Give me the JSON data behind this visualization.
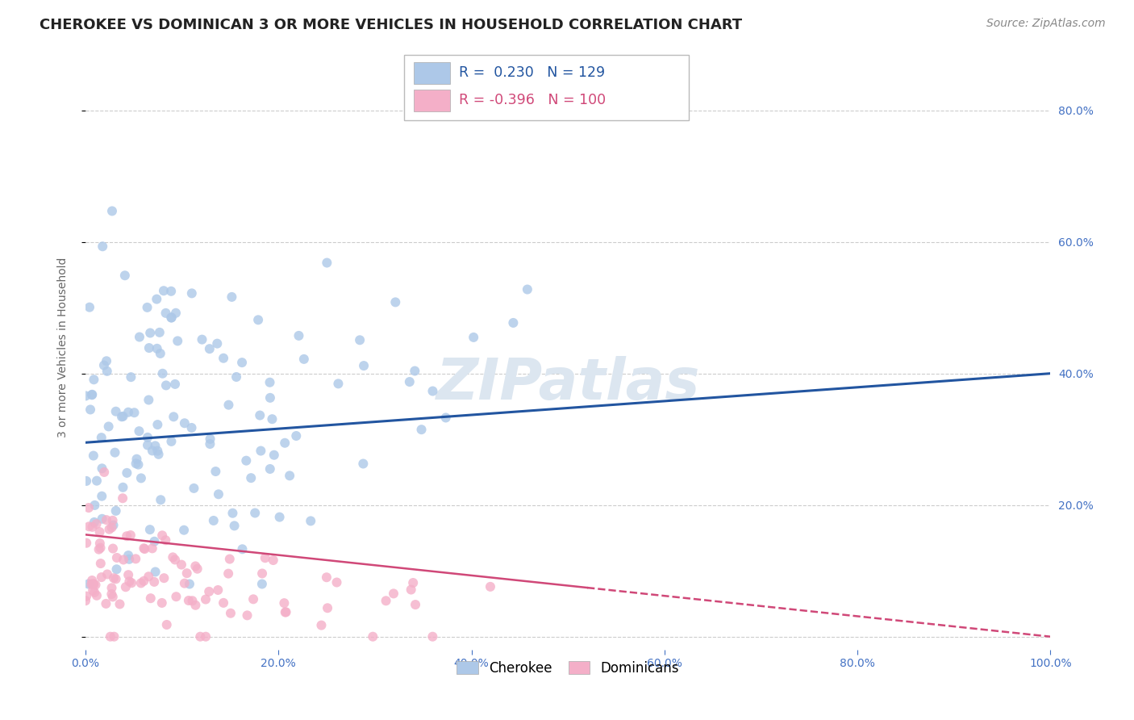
{
  "title": "CHEROKEE VS DOMINICAN 3 OR MORE VEHICLES IN HOUSEHOLD CORRELATION CHART",
  "source": "Source: ZipAtlas.com",
  "ylabel": "3 or more Vehicles in Household",
  "xlim": [
    0.0,
    1.0
  ],
  "ylim": [
    -0.02,
    0.9
  ],
  "cherokee_R": 0.23,
  "cherokee_N": 129,
  "dominican_R": -0.396,
  "dominican_N": 100,
  "cherokee_color": "#adc8e8",
  "cherokee_line_color": "#2255a0",
  "dominican_color": "#f4afc8",
  "dominican_line_color": "#d04878",
  "background_color": "#ffffff",
  "grid_color": "#cccccc",
  "title_fontsize": 13,
  "source_fontsize": 10,
  "axis_label_fontsize": 10,
  "tick_fontsize": 10,
  "legend_fontsize": 12,
  "watermark_text": "ZIPatlas",
  "watermark_color": "#dce6f0",
  "watermark_fontsize": 52,
  "right_tick_color": "#4472c4",
  "bottom_tick_color": "#4472c4"
}
